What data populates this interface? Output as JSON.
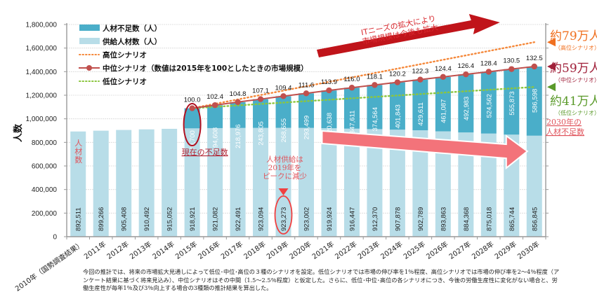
{
  "chart_data": {
    "type": "bar",
    "stacked": true,
    "title": "",
    "xlabel": "",
    "ylabel": "人数",
    "ylim": [
      0,
      1800000
    ],
    "yticks": [
      0,
      200000,
      400000,
      600000,
      800000,
      1000000,
      1200000,
      1400000,
      1600000,
      1800000
    ],
    "ytick_labels": [
      "0",
      "200,000",
      "400,000",
      "600,000",
      "800,000",
      "1,000,000",
      "1,200,000",
      "1,400,000",
      "1,600,000",
      "1,800,000"
    ],
    "grid": true,
    "legend_position": "top-left",
    "categories": [
      "2010年（国勢調査結果）",
      "2011年",
      "2012年",
      "2013年",
      "2014年",
      "2015年",
      "2016年",
      "2017年",
      "2018年",
      "2019年",
      "2020年",
      "2021年",
      "2022年",
      "2023年",
      "2024年",
      "2025年",
      "2026年",
      "2027年",
      "2028年",
      "2029年",
      "2030年"
    ],
    "series": [
      {
        "name": "供給人材数（人）",
        "kind": "bar",
        "color": "#b8dde8",
        "values": [
          892511,
          899266,
          905408,
          910492,
          915052,
          918921,
          921082,
          922491,
          923094,
          923273,
          923002,
          919924,
          916447,
          912370,
          907878,
          902789,
          893863,
          884368,
          875018,
          865744,
          856845
        ],
        "labels": [
          "892,511",
          "899,266",
          "905,408",
          "910,492",
          "915,052",
          "918,921",
          "921,082",
          "922,491",
          "923,094",
          "923,273",
          "923,002",
          "919,924",
          "916,447",
          "912,370",
          "907,878",
          "902,789",
          "893,863",
          "884,368",
          "875,018",
          "865,744",
          "856,845"
        ]
      },
      {
        "name": "人材不足数（人）",
        "kind": "bar",
        "color": "#4aaec9",
        "values": [
          null,
          null,
          null,
          null,
          null,
          170700,
          194608,
          218976,
          243805,
          268655,
          293499,
          320638,
          347611,
          374564,
          401843,
          429611,
          461087,
          492983,
          524562,
          555873,
          586598
        ],
        "labels": [
          "",
          "",
          "",
          "",
          "",
          "170,700",
          "194,608",
          "218,976",
          "243,805",
          "268,655",
          "293,499",
          "320,638",
          "347,611",
          "374,564",
          "401,843",
          "429,611",
          "461,087",
          "492,983",
          "524,562",
          "555,873",
          "586,598"
        ]
      },
      {
        "name": "高位シナリオ",
        "kind": "line",
        "style": "dotted",
        "color": "#f5883a",
        "start_category": "2015年",
        "start_value": 1089621,
        "end_category": "2030年",
        "end_value": 1650000
      },
      {
        "name": "中位シナリオ（数値は2015年を100としたときの市場規模）",
        "kind": "line",
        "style": "solid-markers",
        "color": "#c0504d",
        "index_values": [
          null,
          null,
          null,
          null,
          null,
          100.0,
          102.4,
          104.8,
          107.1,
          109.4,
          111.6,
          113.9,
          116.0,
          118.1,
          120.2,
          122.3,
          124.4,
          126.4,
          128.4,
          130.5,
          132.5
        ],
        "index_labels": [
          "",
          "",
          "",
          "",
          "",
          "100.0",
          "102.4",
          "104.8",
          "107.1",
          "109.4",
          "111.6",
          "113.9",
          "116.0",
          "118.1",
          "120.2",
          "122.3",
          "124.4",
          "126.4",
          "128.4",
          "130.5",
          "132.5"
        ]
      },
      {
        "name": "低位シナリオ",
        "kind": "line",
        "style": "dotted",
        "color": "#8cc63f",
        "start_category": "2015年",
        "start_value": 1089621,
        "end_category": "2030年",
        "end_value": 1270000
      }
    ],
    "legend": [
      {
        "label": "人材不足数（人）",
        "type": "bar",
        "color": "#4aaec9"
      },
      {
        "label": "供給人材数（人）",
        "type": "bar",
        "color": "#b8dde8"
      },
      {
        "label": "高位シナリオ",
        "type": "dotted",
        "color": "#f5883a"
      },
      {
        "label": "中位シナリオ（数値は2015年を100としたときの市場規模）",
        "type": "line-marker",
        "color": "#c0504d"
      },
      {
        "label": "低位シナリオ",
        "type": "dotted",
        "color": "#8cc63f"
      }
    ],
    "annotations": {
      "growth_arrow_text": [
        "ITニーズの拡大により",
        "市場規模は今後も拡大"
      ],
      "scenario_high": {
        "value": "約79万人",
        "sub": "（高位シナリオ）",
        "color": "#f07020"
      },
      "scenario_mid": {
        "value": "約59万人",
        "sub": "（中位シナリオ）",
        "color": "#a0203a"
      },
      "scenario_low": {
        "value": "約41万人",
        "sub": "（低位シナリオ）",
        "color": "#5a9a2a"
      },
      "shortage_2030": [
        "2030年の",
        "人材不足数"
      ],
      "current_shortage": "現在の不足数",
      "supply_label": [
        "人",
        "材",
        "数"
      ],
      "supply_peak": [
        "人材供給は",
        "2019年を",
        "ピークに減少"
      ]
    }
  },
  "footnote": "今回の推計では、将来の市場拡大見通しによって低位･中位･高位の３種のシナリオを設定。低位シナリオでは市場の伸び率を1％程度、高位シナリオでは市場の伸び率を2～4％程度（アンケート結果に基づく将来見込み）、中位シナリオはその中間（1.5～2.5％程度）と仮定した。さらに、低位･中位･高位の各シナリオにつき、今後の労働生産性に変化がない場合と、労働生産性が毎年1％及び3％向上する場合の3種類の推計結果を算出した。"
}
